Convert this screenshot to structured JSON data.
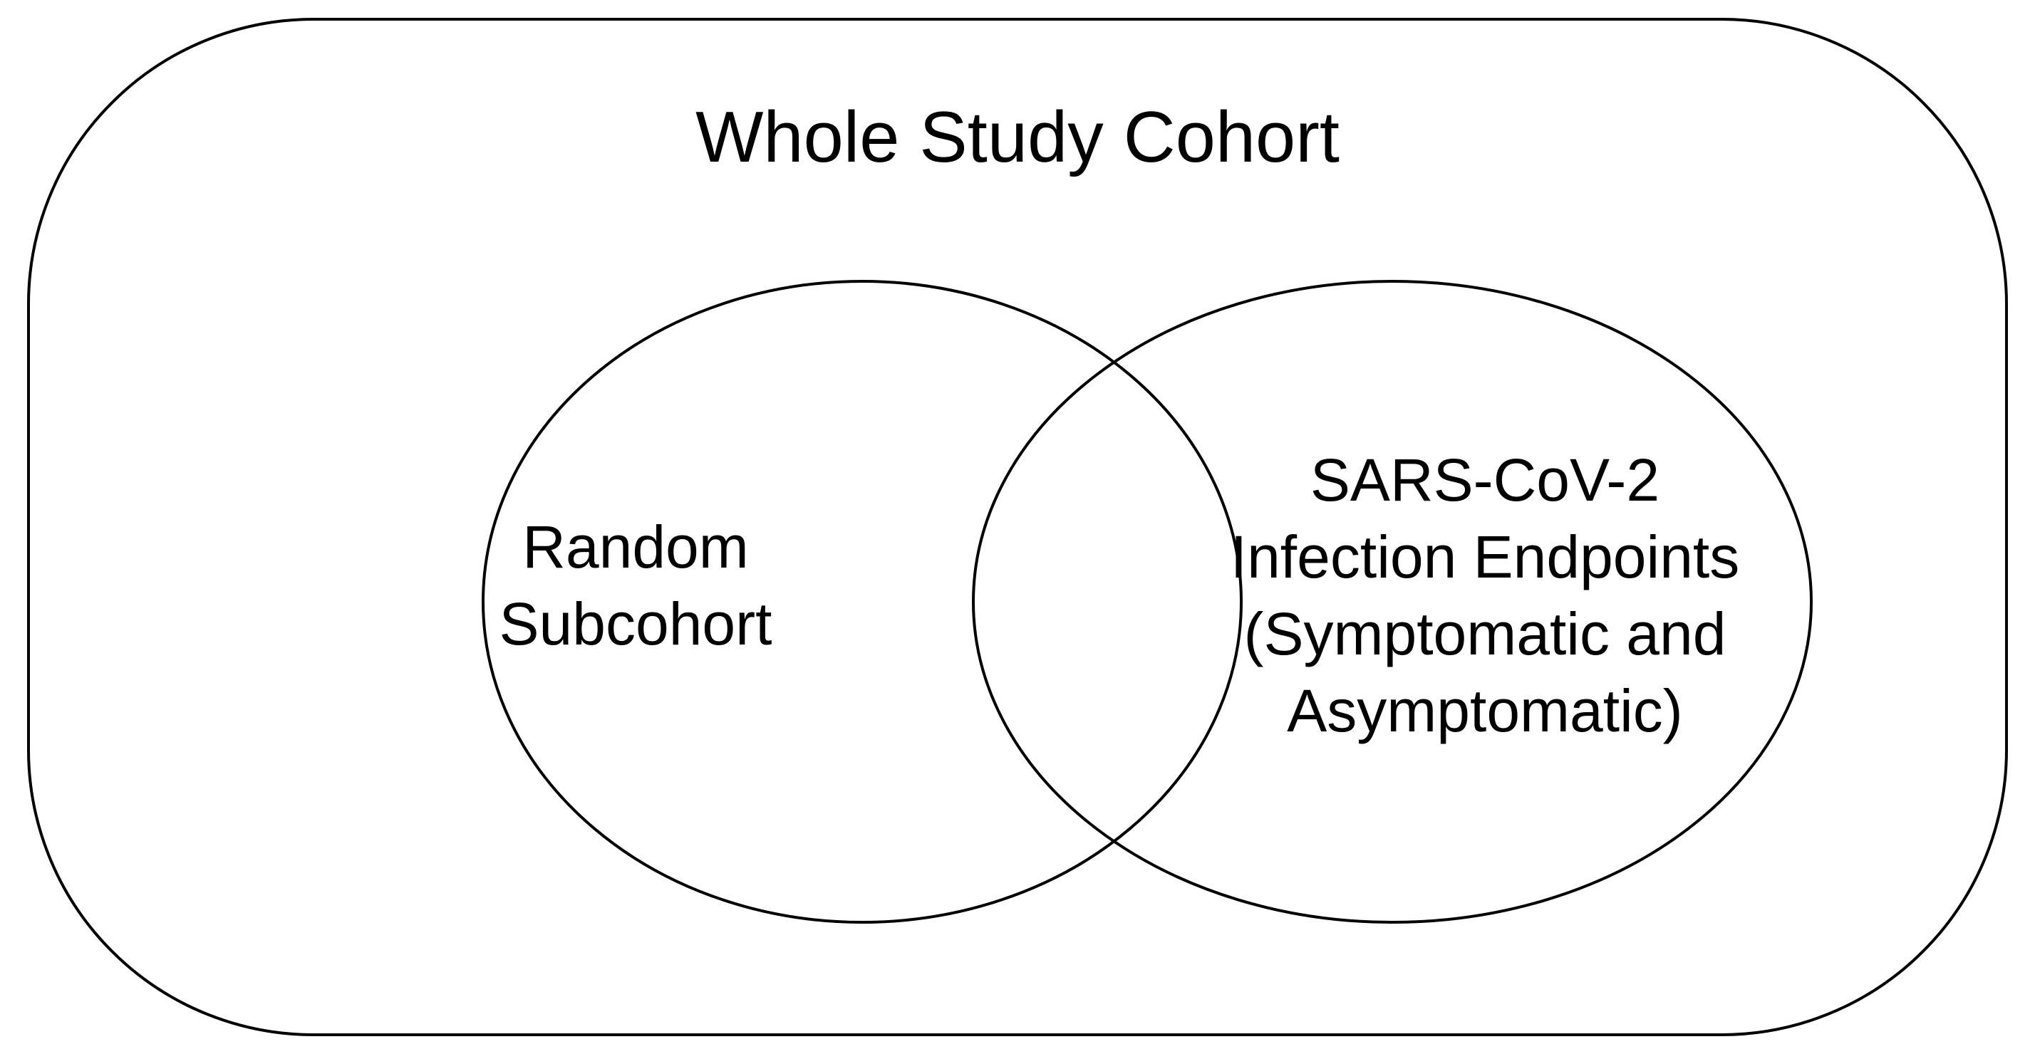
{
  "diagram": {
    "outer_box": {
      "label": "Whole Study Cohort"
    },
    "left_set": {
      "lines": [
        "Random",
        "Subcohort"
      ]
    },
    "right_set": {
      "lines": [
        "SARS-CoV-2",
        "Infection Endpoints",
        "(Symptomatic and",
        "Asymptomatic)"
      ]
    },
    "colors": {
      "stroke": "#000000",
      "background": "#ffffff",
      "text": "#000000"
    }
  }
}
